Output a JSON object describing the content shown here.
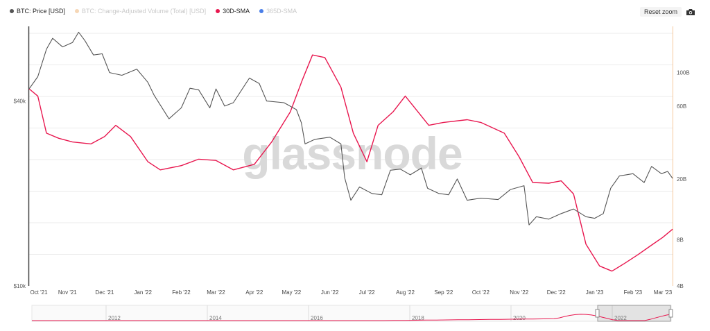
{
  "legend": [
    {
      "label": "BTC: Price [USD]",
      "color": "#555555",
      "active": true
    },
    {
      "label": "BTC: Change-Adjusted Volume (Total) [USD]",
      "color": "#f6d7b6",
      "active": false
    },
    {
      "label": "30D-SMA",
      "color": "#e8174f",
      "active": true
    },
    {
      "label": "365D-SMA",
      "color": "#4a7ee8",
      "active": false
    }
  ],
  "toolbar": {
    "reset_label": "Reset zoom",
    "camera_icon": "camera-icon"
  },
  "watermark": "glassnode",
  "colors": {
    "price": "#555555",
    "sma": "#e8174f",
    "volume_axis": "#f6c79a",
    "grid": "#ebebeb"
  },
  "navigator": {
    "year_labels": [
      "2012",
      "2014",
      "2016",
      "2018",
      "2020",
      "2022"
    ]
  },
  "chart_data": {
    "type": "line",
    "title": "",
    "y_left": {
      "scale": "log",
      "ticks": [
        "$10k",
        "$40k"
      ],
      "range": [
        10000,
        70000
      ]
    },
    "y_right": {
      "scale": "log",
      "ticks": [
        "4B",
        "8B",
        "20B",
        "60B",
        "100B"
      ],
      "range": [
        4000000000,
        200000000000
      ]
    },
    "x_ticks": [
      "Oct '21",
      "Nov '21",
      "Dec '21",
      "Jan '22",
      "Feb '22",
      "Mar '22",
      "Apr '22",
      "May '22",
      "Jun '22",
      "Jul '22",
      "Aug '22",
      "Sep '22",
      "Oct '22",
      "Nov '22",
      "Dec '22",
      "Jan '23",
      "Feb '23",
      "Mar '23"
    ],
    "grid": true,
    "legend_position": "top-left",
    "series": [
      {
        "name": "BTC: Price [USD]",
        "axis": "left",
        "x": [
          "2021-10-01",
          "2021-10-08",
          "2021-10-15",
          "2021-10-20",
          "2021-10-28",
          "2021-11-05",
          "2021-11-10",
          "2021-11-15",
          "2021-11-22",
          "2021-11-29",
          "2021-12-05",
          "2021-12-15",
          "2021-12-27",
          "2022-01-05",
          "2022-01-10",
          "2022-01-22",
          "2022-02-01",
          "2022-02-08",
          "2022-02-15",
          "2022-02-24",
          "2022-03-01",
          "2022-03-08",
          "2022-03-15",
          "2022-03-28",
          "2022-04-05",
          "2022-04-11",
          "2022-04-25",
          "2022-05-05",
          "2022-05-09",
          "2022-05-12",
          "2022-05-20",
          "2022-06-01",
          "2022-06-10",
          "2022-06-13",
          "2022-06-18",
          "2022-06-25",
          "2022-07-05",
          "2022-07-13",
          "2022-07-20",
          "2022-07-28",
          "2022-08-05",
          "2022-08-14",
          "2022-08-19",
          "2022-08-28",
          "2022-09-05",
          "2022-09-12",
          "2022-09-20",
          "2022-10-01",
          "2022-10-15",
          "2022-10-25",
          "2022-11-05",
          "2022-11-09",
          "2022-11-15",
          "2022-11-25",
          "2022-12-05",
          "2022-12-15",
          "2022-12-25",
          "2023-01-01",
          "2023-01-08",
          "2023-01-14",
          "2023-01-21",
          "2023-02-01",
          "2023-02-10",
          "2023-02-16",
          "2023-02-24",
          "2023-03-01",
          "2023-03-05"
        ],
        "values": [
          43800,
          48000,
          59000,
          64000,
          60000,
          62000,
          67000,
          63000,
          56500,
          57000,
          49500,
          48500,
          50800,
          46000,
          41800,
          35000,
          38000,
          44000,
          43500,
          38000,
          43800,
          38500,
          39500,
          47500,
          45600,
          40000,
          39500,
          37500,
          34000,
          29000,
          30000,
          30500,
          29000,
          22500,
          19000,
          21000,
          20000,
          19800,
          23800,
          24000,
          23000,
          24200,
          20800,
          20000,
          19800,
          22300,
          19000,
          19300,
          19100,
          20600,
          21200,
          15800,
          16800,
          16500,
          17200,
          17800,
          16800,
          16600,
          17200,
          20800,
          22800,
          23200,
          21700,
          24500,
          23200,
          23600,
          22400
        ]
      },
      {
        "name": "30D-SMA",
        "axis": "right",
        "x": [
          "2021-10-01",
          "2021-10-08",
          "2021-10-15",
          "2021-10-25",
          "2021-11-05",
          "2021-11-20",
          "2021-12-01",
          "2021-12-10",
          "2021-12-22",
          "2022-01-05",
          "2022-01-15",
          "2022-02-01",
          "2022-02-15",
          "2022-03-01",
          "2022-03-15",
          "2022-04-01",
          "2022-04-15",
          "2022-04-30",
          "2022-05-10",
          "2022-05-18",
          "2022-05-28",
          "2022-06-10",
          "2022-06-20",
          "2022-07-01",
          "2022-07-10",
          "2022-07-22",
          "2022-08-01",
          "2022-08-20",
          "2022-09-01",
          "2022-09-20",
          "2022-10-01",
          "2022-10-20",
          "2022-11-01",
          "2022-11-12",
          "2022-11-25",
          "2022-12-05",
          "2022-12-15",
          "2022-12-25",
          "2023-01-05",
          "2023-01-15",
          "2023-01-25",
          "2023-02-05",
          "2023-02-15",
          "2023-02-25",
          "2023-03-05"
        ],
        "values": [
          78000000000,
          70000000000,
          40000000000,
          37000000000,
          35000000000,
          34000000000,
          38000000000,
          45000000000,
          38000000000,
          26000000000,
          23000000000,
          24500000000,
          27000000000,
          26500000000,
          23000000000,
          25000000000,
          35000000000,
          55000000000,
          90000000000,
          130000000000,
          125000000000,
          80000000000,
          40000000000,
          26000000000,
          45000000000,
          55000000000,
          70000000000,
          45000000000,
          47000000000,
          49000000000,
          47000000000,
          40000000000,
          28000000000,
          19000000000,
          18800000000,
          19500000000,
          16000000000,
          7500000000,
          5400000000,
          5000000000,
          5600000000,
          6400000000,
          7300000000,
          8300000000,
          9400000000
        ]
      }
    ]
  }
}
